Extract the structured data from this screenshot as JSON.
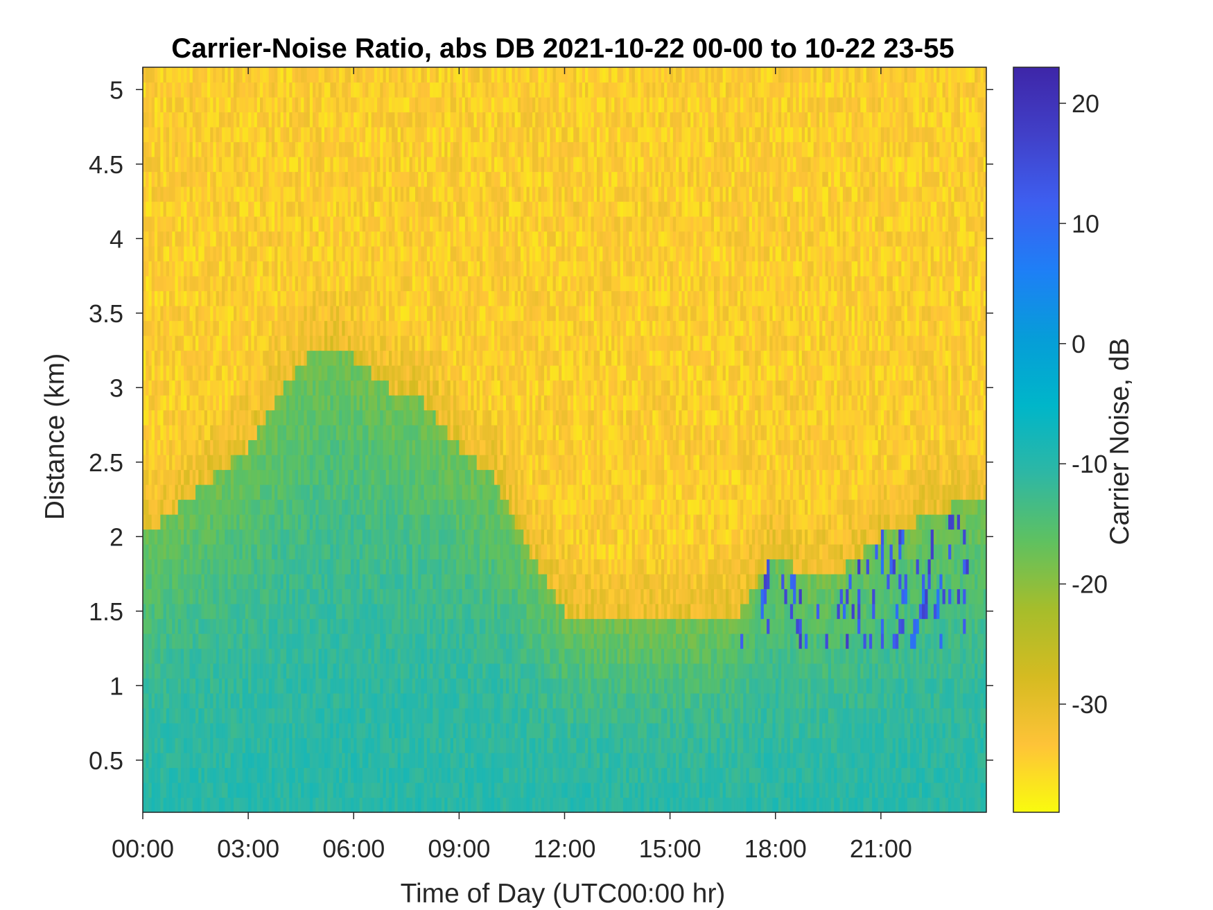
{
  "chart_data": {
    "type": "heatmap",
    "title": "Carrier-Noise Ratio, abs DB 2021-10-22 00-00 to 10-22 23-55",
    "xlabel": "Time of Day (UTC00:00 hr)",
    "ylabel": "Distance (km)",
    "colorbar_label": "Carrier Noise, dB",
    "x_ticks": [
      "00:00",
      "03:00",
      "06:00",
      "09:00",
      "12:00",
      "15:00",
      "18:00",
      "21:00"
    ],
    "x_tick_values_hr": [
      0,
      3,
      6,
      9,
      12,
      15,
      18,
      21
    ],
    "xlim_hr": [
      0,
      24
    ],
    "y_ticks": [
      "0.5",
      "1",
      "1.5",
      "2",
      "2.5",
      "3",
      "3.5",
      "4",
      "4.5",
      "5"
    ],
    "y_tick_values_km": [
      0.5,
      1,
      1.5,
      2,
      2.5,
      3,
      3.5,
      4,
      4.5,
      5
    ],
    "ylim_km": [
      0.15,
      5.15
    ],
    "colorbar_ticks": [
      "20",
      "10",
      "0",
      "-10",
      "-20",
      "-30"
    ],
    "colorbar_tick_values_db": [
      20,
      10,
      0,
      -10,
      -20,
      -30
    ],
    "clim_db": [
      -39,
      23
    ],
    "colormap": "parula",
    "colormap_stops": [
      "#F9FB0E",
      "#FEC338",
      "#D5BB21",
      "#A6BD2B",
      "#5FC160",
      "#2EB7A4",
      "#00B6C9",
      "#069DD8",
      "#1E7FF6",
      "#3D5FF0",
      "#4140C8",
      "#3E26A8"
    ],
    "grid": false,
    "legend": "none",
    "features": {
      "background_db": -34,
      "near_range_db": -10,
      "boundary_layer_top_km": {
        "time_hr": [
          0,
          1,
          2,
          3,
          4,
          5,
          6,
          7,
          8,
          9,
          10,
          11,
          12,
          13,
          14,
          15,
          16,
          17,
          18,
          19,
          20,
          21,
          22,
          23,
          24
        ],
        "top_km": [
          2.0,
          2.2,
          2.4,
          2.6,
          3.0,
          3.3,
          3.2,
          3.0,
          2.9,
          2.6,
          2.4,
          1.9,
          1.5,
          1.4,
          1.4,
          1.4,
          1.4,
          1.5,
          1.9,
          1.7,
          1.8,
          2.0,
          2.1,
          2.2,
          2.2
        ]
      }
    }
  }
}
